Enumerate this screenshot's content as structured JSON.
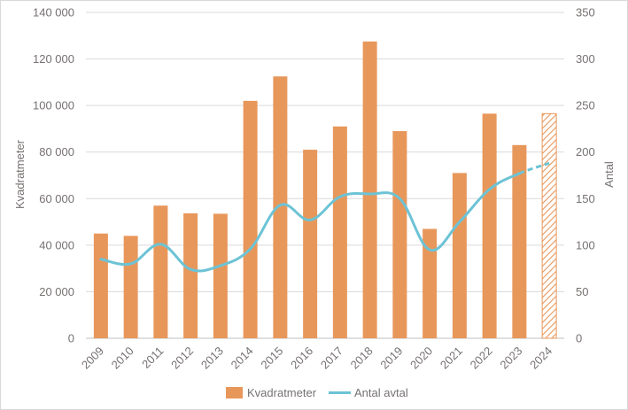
{
  "chart_data": {
    "type": "bar",
    "categories": [
      "2009",
      "2010",
      "2011",
      "2012",
      "2013",
      "2014",
      "2015",
      "2016",
      "2017",
      "2018",
      "2019",
      "2020",
      "2021",
      "2022",
      "2023",
      "2024"
    ],
    "series": [
      {
        "name": "Kvadratmeter",
        "kind": "bar",
        "axis": "left",
        "color": "#e8975b",
        "values": [
          45000,
          44000,
          57000,
          53700,
          53500,
          102000,
          112500,
          81000,
          91000,
          127500,
          89000,
          47000,
          71000,
          96500,
          83000,
          96500
        ],
        "forecast_from": "2024"
      },
      {
        "name": "Antal avtal",
        "kind": "line",
        "axis": "right",
        "color": "#6cc3d5",
        "values": [
          85,
          80,
          101,
          74,
          78,
          96,
          143,
          127,
          152,
          155,
          150,
          95,
          125,
          160,
          177,
          188
        ],
        "forecast_from": "2023"
      }
    ],
    "ylabel": "Kvadratmeter",
    "y2label": "Antal",
    "ylim": [
      0,
      140000
    ],
    "y2lim": [
      0,
      350
    ],
    "yticks": [
      "0",
      "20 000",
      "40 000",
      "60 000",
      "80 000",
      "100 000",
      "120 000",
      "140 000"
    ],
    "y2ticks": [
      "0",
      "50",
      "100",
      "150",
      "200",
      "250",
      "300",
      "350"
    ],
    "legend": "bottom",
    "grid": true
  }
}
